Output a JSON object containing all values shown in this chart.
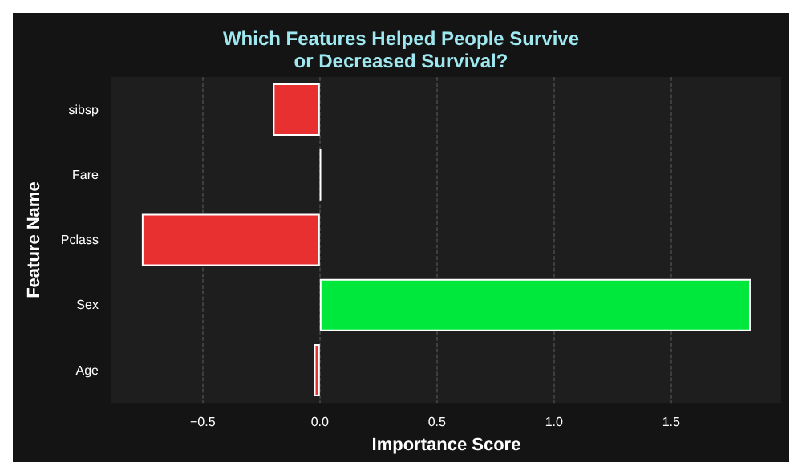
{
  "chart_data": {
    "type": "bar",
    "orientation": "horizontal",
    "title": "Which Features Helped People Survive\nor Decreased Survival?",
    "xlabel": "Importance Score",
    "ylabel": "Feature Name",
    "categories": [
      "sibsp",
      "Fare",
      "Pclass",
      "Sex",
      "Age"
    ],
    "values": [
      -0.2,
      0.005,
      -0.76,
      1.84,
      -0.025
    ],
    "colors": [
      "#e83030",
      "#ffffff",
      "#e83030",
      "#00e83c",
      "#e83030"
    ],
    "xlim": [
      -0.89,
      1.97
    ],
    "xticks": [
      {
        "value": -0.5,
        "label": "−0.5"
      },
      {
        "value": 0,
        "label": "0.0"
      },
      {
        "value": 0.5,
        "label": "0.5"
      },
      {
        "value": 1,
        "label": "1.0"
      },
      {
        "value": 1.5,
        "label": "1.5"
      }
    ],
    "grid": "x"
  }
}
